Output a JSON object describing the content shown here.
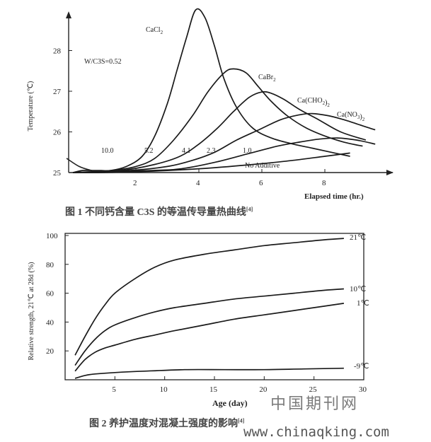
{
  "figure1": {
    "caption": "图 1 不同钙含量 C3S 的等温传导量热曲线",
    "caption_ref": "[4]"
  },
  "figure2": {
    "caption": "图 2 养护温度对混凝土强度的影响",
    "caption_ref": "[4]"
  },
  "watermark": {
    "text": "中国期刊网",
    "url": "www.chinaqking.com"
  },
  "chart_data": [
    {
      "type": "line",
      "title": "",
      "xlabel": "Elapsed time (hr.)",
      "ylabel": "Temperature (℃)",
      "xlim": [
        0,
        10
      ],
      "ylim": [
        25,
        29
      ],
      "x_ticks": [
        2,
        4,
        6,
        8
      ],
      "y_ticks": [
        25,
        26,
        27,
        28
      ],
      "grid": false,
      "annotation": "W/C3S=0.52",
      "series": [
        {
          "name": "CaCl2",
          "percent_label": "10.0",
          "x": [
            0,
            0.3,
            0.6,
            0.9,
            1.2,
            1.7,
            2.2,
            2.6,
            3.0,
            3.3,
            3.6,
            3.9,
            4.2,
            4.5,
            4.8,
            5.2,
            5.7,
            6.3,
            7.0,
            7.6,
            8.2,
            8.8
          ],
          "y": [
            25.0,
            25.05,
            25.05,
            25.05,
            25.05,
            25.15,
            25.4,
            25.9,
            26.7,
            27.5,
            28.3,
            29.0,
            28.8,
            28.1,
            27.3,
            26.6,
            26.1,
            25.85,
            25.7,
            25.6,
            25.5,
            25.4
          ]
        },
        {
          "name": "CaBr2",
          "percent_label": "5.2",
          "x": [
            0,
            1.2,
            2.0,
            2.6,
            3.2,
            3.8,
            4.3,
            4.8,
            5.1,
            5.5,
            5.9,
            6.3,
            6.8,
            7.4,
            8.0,
            8.6,
            9.2
          ],
          "y": [
            25.0,
            25.05,
            25.15,
            25.35,
            25.8,
            26.4,
            27.0,
            27.45,
            27.55,
            27.45,
            27.1,
            26.75,
            26.4,
            26.1,
            25.9,
            25.75,
            25.65
          ]
        },
        {
          "name": "Ca(CHO2)2",
          "percent_label": "4.1",
          "x": [
            0,
            1.5,
            2.6,
            3.4,
            4.0,
            4.6,
            5.1,
            5.6,
            6.0,
            6.3,
            6.7,
            7.2,
            7.8,
            8.5,
            9.3
          ],
          "y": [
            25.0,
            25.05,
            25.2,
            25.4,
            25.7,
            26.1,
            26.5,
            26.85,
            26.98,
            26.95,
            26.8,
            26.55,
            26.3,
            26.0,
            25.8
          ]
        },
        {
          "name": "Ca(NO3)2",
          "percent_label": "2.3",
          "x": [
            0,
            1.8,
            3.0,
            3.8,
            4.5,
            5.2,
            5.9,
            6.6,
            7.2,
            7.6,
            8.1,
            8.6,
            9.2,
            9.6
          ],
          "y": [
            25.0,
            25.05,
            25.15,
            25.3,
            25.5,
            25.8,
            26.05,
            26.3,
            26.42,
            26.45,
            26.4,
            26.3,
            26.15,
            26.05
          ]
        },
        {
          "name": "",
          "percent_label": "1.0",
          "x": [
            0,
            2.5,
            3.5,
            4.5,
            5.5,
            6.5,
            7.2,
            7.8,
            8.4,
            9.0,
            9.6
          ],
          "y": [
            25.0,
            25.05,
            25.1,
            25.25,
            25.45,
            25.65,
            25.75,
            25.82,
            25.85,
            25.8,
            25.7
          ]
        },
        {
          "name": "No Additive",
          "percent_label": "",
          "x": [
            0,
            1.0,
            3.0,
            4.5,
            6.0,
            7.0,
            8.0,
            8.8
          ],
          "y": [
            25.0,
            25.0,
            25.05,
            25.12,
            25.22,
            25.3,
            25.4,
            25.48
          ]
        }
      ],
      "pre_segment": {
        "x": [
          -0.2,
          0.2,
          0.6,
          1.0
        ],
        "y": [
          25.35,
          25.15,
          25.05,
          25.0
        ]
      }
    },
    {
      "type": "line",
      "title": "",
      "xlabel": "Age (day)",
      "ylabel": "Relative strength, 21℃ at 28d (%)",
      "xlim": [
        0,
        30
      ],
      "ylim": [
        0,
        100
      ],
      "x_ticks": [
        5,
        10,
        15,
        20,
        25,
        30
      ],
      "y_ticks": [
        20,
        40,
        60,
        80,
        100
      ],
      "grid": false,
      "series": [
        {
          "name": "21℃",
          "x": [
            1,
            2,
            3,
            4,
            5,
            7,
            9,
            11,
            14,
            17,
            20,
            23,
            26,
            28
          ],
          "y": [
            17,
            30,
            42,
            52,
            60,
            70,
            78,
            83,
            87,
            90,
            93,
            95,
            97,
            98
          ]
        },
        {
          "name": "10℃",
          "x": [
            1,
            2,
            3,
            4,
            5,
            7,
            9,
            11,
            14,
            17,
            20,
            23,
            26,
            28
          ],
          "y": [
            10,
            20,
            28,
            34,
            38,
            43,
            47,
            50,
            53,
            56,
            58,
            60,
            62,
            63
          ]
        },
        {
          "name": "1℃",
          "x": [
            1,
            2,
            3,
            4,
            5,
            7,
            9,
            11,
            14,
            17,
            20,
            23,
            26,
            28
          ],
          "y": [
            6,
            14,
            19,
            22,
            24,
            28,
            31,
            34,
            38,
            42,
            45,
            48,
            51,
            53
          ]
        },
        {
          "name": "-9℃",
          "x": [
            1,
            2,
            3,
            5,
            8,
            12,
            16,
            20,
            24,
            28
          ],
          "y": [
            1,
            3,
            4,
            5,
            6,
            7,
            7,
            7,
            7.5,
            8
          ]
        }
      ]
    }
  ]
}
